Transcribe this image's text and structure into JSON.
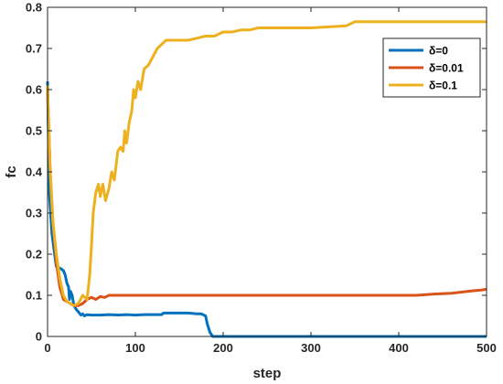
{
  "chart_data": {
    "type": "line",
    "xlabel": "step",
    "ylabel": "fc",
    "xlim": [
      0,
      500
    ],
    "ylim": [
      0,
      0.8
    ],
    "xticks": [
      0,
      100,
      200,
      300,
      400,
      500
    ],
    "yticks": [
      0,
      0.1,
      0.2,
      0.3,
      0.4,
      0.5,
      0.6,
      0.7,
      0.8
    ],
    "grid": false,
    "legend_position": "top-right",
    "series": [
      {
        "name": "δ=0",
        "color": "#0072BD",
        "points": [
          [
            0,
            0.62
          ],
          [
            2,
            0.35
          ],
          [
            5,
            0.25
          ],
          [
            8,
            0.2
          ],
          [
            10,
            0.17
          ],
          [
            15,
            0.165
          ],
          [
            18,
            0.16
          ],
          [
            20,
            0.15
          ],
          [
            22,
            0.13
          ],
          [
            24,
            0.12
          ],
          [
            25,
            0.09
          ],
          [
            26,
            0.11
          ],
          [
            28,
            0.1
          ],
          [
            30,
            0.075
          ],
          [
            33,
            0.065
          ],
          [
            35,
            0.06
          ],
          [
            38,
            0.052
          ],
          [
            40,
            0.055
          ],
          [
            42,
            0.05
          ],
          [
            45,
            0.053
          ],
          [
            50,
            0.052
          ],
          [
            60,
            0.052
          ],
          [
            70,
            0.053
          ],
          [
            80,
            0.052
          ],
          [
            90,
            0.053
          ],
          [
            100,
            0.052
          ],
          [
            110,
            0.053
          ],
          [
            120,
            0.053
          ],
          [
            130,
            0.053
          ],
          [
            132,
            0.057
          ],
          [
            140,
            0.057
          ],
          [
            150,
            0.057
          ],
          [
            160,
            0.057
          ],
          [
            170,
            0.055
          ],
          [
            175,
            0.055
          ],
          [
            180,
            0.05
          ],
          [
            182,
            0.03
          ],
          [
            185,
            0.01
          ],
          [
            188,
            0.0
          ],
          [
            200,
            0.0
          ],
          [
            300,
            0.0
          ],
          [
            400,
            0.0
          ],
          [
            500,
            0.0
          ]
        ]
      },
      {
        "name": "δ=0.01",
        "color": "#D95319",
        "points": [
          [
            0,
            0.6
          ],
          [
            3,
            0.4
          ],
          [
            6,
            0.28
          ],
          [
            10,
            0.18
          ],
          [
            14,
            0.12
          ],
          [
            18,
            0.09
          ],
          [
            22,
            0.085
          ],
          [
            26,
            0.08
          ],
          [
            30,
            0.075
          ],
          [
            35,
            0.075
          ],
          [
            40,
            0.08
          ],
          [
            45,
            0.09
          ],
          [
            50,
            0.095
          ],
          [
            55,
            0.09
          ],
          [
            60,
            0.097
          ],
          [
            65,
            0.095
          ],
          [
            70,
            0.1
          ],
          [
            80,
            0.1
          ],
          [
            90,
            0.1
          ],
          [
            100,
            0.1
          ],
          [
            150,
            0.1
          ],
          [
            200,
            0.1
          ],
          [
            250,
            0.1
          ],
          [
            300,
            0.1
          ],
          [
            350,
            0.1
          ],
          [
            400,
            0.1
          ],
          [
            420,
            0.1
          ],
          [
            440,
            0.103
          ],
          [
            460,
            0.105
          ],
          [
            480,
            0.11
          ],
          [
            495,
            0.113
          ],
          [
            500,
            0.115
          ]
        ]
      },
      {
        "name": "δ=0.1",
        "color": "#EDB120",
        "points": [
          [
            0,
            0.61
          ],
          [
            3,
            0.4
          ],
          [
            6,
            0.28
          ],
          [
            10,
            0.2
          ],
          [
            14,
            0.14
          ],
          [
            18,
            0.1
          ],
          [
            22,
            0.085
          ],
          [
            26,
            0.08
          ],
          [
            30,
            0.075
          ],
          [
            35,
            0.08
          ],
          [
            40,
            0.1
          ],
          [
            45,
            0.09
          ],
          [
            48,
            0.15
          ],
          [
            50,
            0.22
          ],
          [
            52,
            0.3
          ],
          [
            55,
            0.35
          ],
          [
            58,
            0.37
          ],
          [
            60,
            0.34
          ],
          [
            63,
            0.37
          ],
          [
            66,
            0.33
          ],
          [
            70,
            0.36
          ],
          [
            73,
            0.4
          ],
          [
            76,
            0.38
          ],
          [
            80,
            0.45
          ],
          [
            83,
            0.46
          ],
          [
            86,
            0.45
          ],
          [
            88,
            0.5
          ],
          [
            90,
            0.47
          ],
          [
            93,
            0.52
          ],
          [
            96,
            0.55
          ],
          [
            98,
            0.6
          ],
          [
            100,
            0.58
          ],
          [
            103,
            0.62
          ],
          [
            106,
            0.6
          ],
          [
            110,
            0.65
          ],
          [
            115,
            0.66
          ],
          [
            120,
            0.68
          ],
          [
            125,
            0.7
          ],
          [
            130,
            0.71
          ],
          [
            135,
            0.72
          ],
          [
            140,
            0.72
          ],
          [
            150,
            0.72
          ],
          [
            160,
            0.72
          ],
          [
            170,
            0.725
          ],
          [
            180,
            0.73
          ],
          [
            190,
            0.73
          ],
          [
            200,
            0.74
          ],
          [
            210,
            0.74
          ],
          [
            220,
            0.745
          ],
          [
            230,
            0.745
          ],
          [
            240,
            0.75
          ],
          [
            300,
            0.75
          ],
          [
            340,
            0.755
          ],
          [
            350,
            0.765
          ],
          [
            400,
            0.765
          ],
          [
            450,
            0.765
          ],
          [
            500,
            0.765
          ]
        ]
      }
    ]
  }
}
